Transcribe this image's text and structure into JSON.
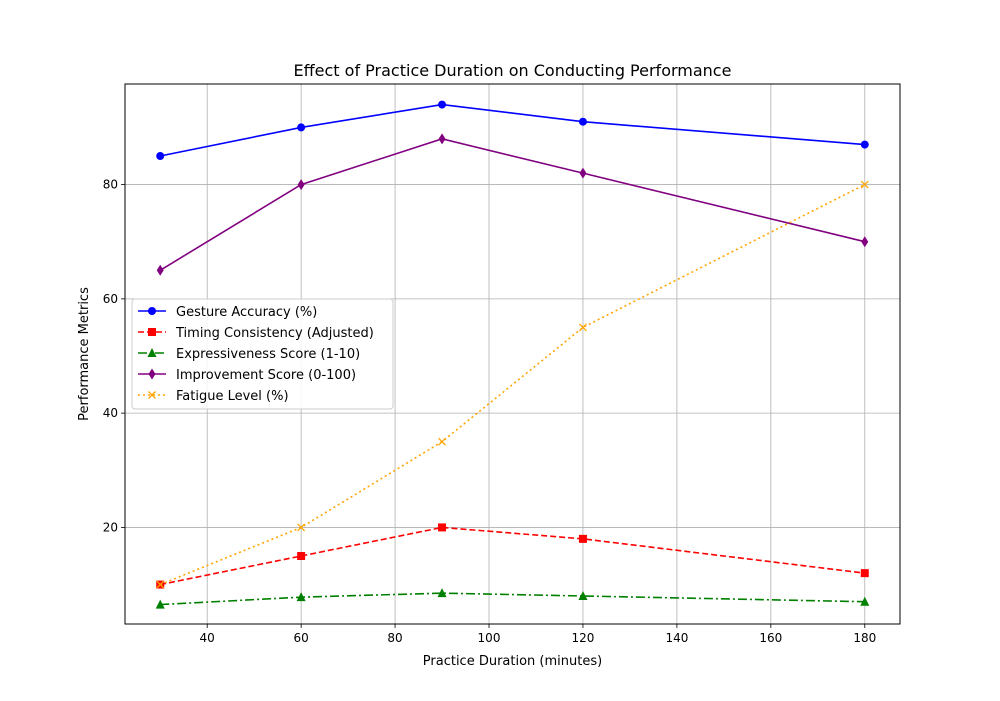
{
  "chart_data": {
    "type": "line",
    "title": "Effect of Practice Duration on Conducting Performance",
    "xlabel": "Practice Duration (minutes)",
    "ylabel": "Performance Metrics",
    "x": [
      30,
      60,
      90,
      120,
      180
    ],
    "xlim": [
      22.5,
      187.5
    ],
    "ylim": [
      3.1,
      97.6
    ],
    "xticks": [
      40,
      60,
      80,
      100,
      120,
      140,
      160,
      180
    ],
    "yticks": [
      20,
      40,
      60,
      80
    ],
    "grid": true,
    "legend_position": "center-left",
    "series": [
      {
        "name": "Gesture Accuracy (%)",
        "values": [
          85,
          90,
          94,
          91,
          87
        ],
        "color": "#0000ff",
        "linestyle": "solid",
        "marker": "circle"
      },
      {
        "name": "Timing Consistency (Adjusted)",
        "values": [
          10,
          15,
          20,
          18,
          12
        ],
        "color": "#ff0000",
        "linestyle": "dashed",
        "marker": "square"
      },
      {
        "name": "Expressiveness Score (1-10)",
        "values": [
          6.5,
          7.8,
          8.5,
          8.0,
          7.0
        ],
        "color": "#008000",
        "linestyle": "dashdot",
        "marker": "triangle"
      },
      {
        "name": "Improvement Score (0-100)",
        "values": [
          65,
          80,
          88,
          82,
          70
        ],
        "color": "#800080",
        "linestyle": "solid",
        "marker": "diamond"
      },
      {
        "name": "Fatigue Level (%)",
        "values": [
          10,
          20,
          35,
          55,
          80
        ],
        "color": "#ffa500",
        "linestyle": "dotted",
        "marker": "x"
      }
    ]
  }
}
